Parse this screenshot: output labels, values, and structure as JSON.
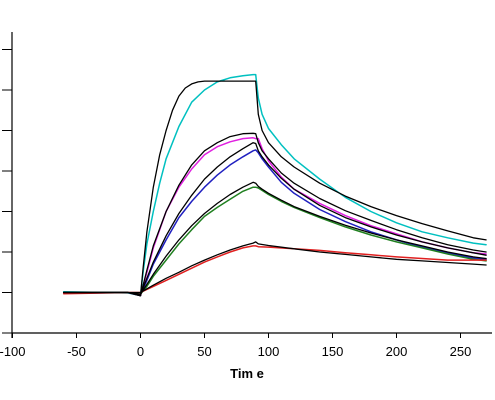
{
  "chart_data": {
    "type": "line",
    "title": "",
    "xlabel": "Tim e",
    "ylabel": "",
    "xlim": [
      -100,
      275
    ],
    "ylim": [
      0,
      7
    ],
    "x_ticks": [
      -100,
      -50,
      0,
      50,
      100,
      150,
      200,
      250
    ],
    "y_ticks": [
      0,
      1,
      2,
      3,
      4,
      5,
      6,
      7
    ],
    "x_tick_labels": [
      "-100",
      "-50",
      "0",
      "50",
      "100",
      "150",
      "200",
      "250"
    ],
    "grid": false,
    "legend": "none",
    "series": [
      {
        "color": "#00c0c0",
        "x": [
          -60,
          -10,
          0,
          2,
          5,
          10,
          15,
          20,
          30,
          40,
          50,
          60,
          70,
          80,
          88,
          90,
          92,
          95,
          100,
          110,
          120,
          140,
          160,
          180,
          200,
          220,
          240,
          260,
          270
        ],
        "y": [
          1.02,
          0.99,
          0.92,
          1.5,
          2.2,
          3.0,
          3.7,
          4.3,
          5.1,
          5.7,
          6.0,
          6.2,
          6.3,
          6.35,
          6.38,
          6.38,
          5.8,
          5.4,
          5.05,
          4.65,
          4.3,
          3.8,
          3.35,
          3.0,
          2.72,
          2.5,
          2.35,
          2.22,
          2.18
        ]
      },
      {
        "color": "#e020e0",
        "x": [
          -60,
          -10,
          0,
          5,
          10,
          20,
          30,
          40,
          50,
          60,
          70,
          80,
          88,
          90,
          92,
          95,
          100,
          110,
          120,
          140,
          160,
          180,
          200,
          220,
          240,
          260,
          270
        ],
        "y": [
          0.98,
          1.0,
          0.92,
          1.5,
          2.1,
          3.0,
          3.6,
          4.05,
          4.4,
          4.6,
          4.72,
          4.8,
          4.82,
          4.8,
          4.8,
          4.55,
          4.25,
          3.85,
          3.55,
          3.2,
          2.9,
          2.65,
          2.45,
          2.25,
          2.1,
          1.98,
          1.95
        ]
      },
      {
        "color": "#2020c0",
        "x": [
          -60,
          -10,
          0,
          5,
          10,
          20,
          30,
          40,
          50,
          60,
          70,
          80,
          88,
          90,
          92,
          95,
          100,
          110,
          120,
          140,
          160,
          180,
          200,
          220,
          240,
          260,
          270
        ],
        "y": [
          1.0,
          1.0,
          0.95,
          1.3,
          1.7,
          2.3,
          2.85,
          3.25,
          3.6,
          3.9,
          4.15,
          4.35,
          4.5,
          4.52,
          4.45,
          4.3,
          4.1,
          3.72,
          3.45,
          3.05,
          2.75,
          2.5,
          2.3,
          2.12,
          1.98,
          1.85,
          1.82
        ]
      },
      {
        "color": "#208020",
        "x": [
          -60,
          -10,
          0,
          5,
          10,
          20,
          30,
          40,
          50,
          60,
          70,
          80,
          88,
          90,
          92,
          95,
          100,
          110,
          120,
          140,
          160,
          180,
          200,
          220,
          240,
          260,
          270
        ],
        "y": [
          1.0,
          1.0,
          0.96,
          1.15,
          1.4,
          1.8,
          2.2,
          2.55,
          2.88,
          3.1,
          3.3,
          3.5,
          3.6,
          3.6,
          3.58,
          3.52,
          3.42,
          3.25,
          3.1,
          2.85,
          2.62,
          2.42,
          2.25,
          2.1,
          1.95,
          1.82,
          1.78
        ]
      },
      {
        "color": "#e02020",
        "x": [
          -60,
          -10,
          0,
          10,
          20,
          30,
          40,
          50,
          60,
          70,
          80,
          88,
          90,
          92,
          100,
          120,
          140,
          160,
          180,
          200,
          220,
          240,
          260,
          270
        ],
        "y": [
          0.97,
          1.0,
          1.0,
          1.15,
          1.3,
          1.45,
          1.6,
          1.75,
          1.88,
          2.0,
          2.1,
          2.15,
          2.15,
          2.13,
          2.12,
          2.08,
          2.04,
          1.98,
          1.93,
          1.88,
          1.84,
          1.8,
          1.8,
          1.8
        ]
      },
      {
        "color": "#000000",
        "x": [
          -60,
          -10,
          0,
          2,
          5,
          10,
          15,
          20,
          25,
          30,
          35,
          40,
          45,
          50,
          88,
          90,
          92,
          95,
          100,
          110,
          120,
          140,
          160,
          180,
          200,
          220,
          240,
          260,
          270
        ],
        "y": [
          1.0,
          1.0,
          0.92,
          1.6,
          2.5,
          3.6,
          4.4,
          5.0,
          5.5,
          5.85,
          6.05,
          6.15,
          6.2,
          6.22,
          6.22,
          6.22,
          5.4,
          5.0,
          4.7,
          4.35,
          4.1,
          3.7,
          3.38,
          3.12,
          2.9,
          2.7,
          2.52,
          2.35,
          2.3
        ]
      },
      {
        "color": "#000000",
        "x": [
          -60,
          -10,
          0,
          5,
          10,
          20,
          30,
          40,
          50,
          60,
          70,
          80,
          88,
          90,
          92,
          95,
          100,
          110,
          120,
          140,
          160,
          180,
          200,
          220,
          240,
          260,
          270
        ],
        "y": [
          1.0,
          1.0,
          0.92,
          1.55,
          2.15,
          3.0,
          3.65,
          4.15,
          4.5,
          4.7,
          4.85,
          4.92,
          4.93,
          4.92,
          4.7,
          4.5,
          4.3,
          3.95,
          3.7,
          3.32,
          3.02,
          2.78,
          2.55,
          2.35,
          2.18,
          2.05,
          2.0
        ]
      },
      {
        "color": "#000000",
        "x": [
          -60,
          -10,
          0,
          5,
          10,
          20,
          30,
          40,
          50,
          60,
          70,
          80,
          88,
          90,
          92,
          95,
          100,
          110,
          120,
          140,
          160,
          180,
          200,
          220,
          240,
          260,
          270
        ],
        "y": [
          1.0,
          1.0,
          0.95,
          1.35,
          1.75,
          2.4,
          2.95,
          3.4,
          3.8,
          4.1,
          4.35,
          4.55,
          4.7,
          4.68,
          4.5,
          4.35,
          4.15,
          3.82,
          3.55,
          3.15,
          2.85,
          2.62,
          2.42,
          2.25,
          2.1,
          1.98,
          1.92
        ]
      },
      {
        "color": "#000000",
        "x": [
          -60,
          -10,
          0,
          5,
          10,
          20,
          30,
          40,
          50,
          60,
          70,
          80,
          88,
          90,
          92,
          95,
          100,
          110,
          120,
          140,
          160,
          180,
          200,
          220,
          240,
          260,
          270
        ],
        "y": [
          1.0,
          1.0,
          0.96,
          1.2,
          1.45,
          1.9,
          2.3,
          2.65,
          2.95,
          3.2,
          3.42,
          3.6,
          3.72,
          3.7,
          3.62,
          3.55,
          3.45,
          3.28,
          3.12,
          2.88,
          2.66,
          2.47,
          2.3,
          2.15,
          2.0,
          1.88,
          1.84
        ]
      },
      {
        "color": "#000000",
        "x": [
          -60,
          -10,
          0,
          10,
          20,
          30,
          40,
          50,
          60,
          70,
          80,
          88,
          90,
          92,
          100,
          120,
          140,
          160,
          180,
          200,
          220,
          240,
          260,
          270
        ],
        "y": [
          1.0,
          1.0,
          1.0,
          1.18,
          1.35,
          1.5,
          1.66,
          1.8,
          1.93,
          2.05,
          2.15,
          2.22,
          2.25,
          2.2,
          2.16,
          2.08,
          2.0,
          1.94,
          1.88,
          1.82,
          1.78,
          1.74,
          1.7,
          1.68
        ]
      }
    ]
  }
}
